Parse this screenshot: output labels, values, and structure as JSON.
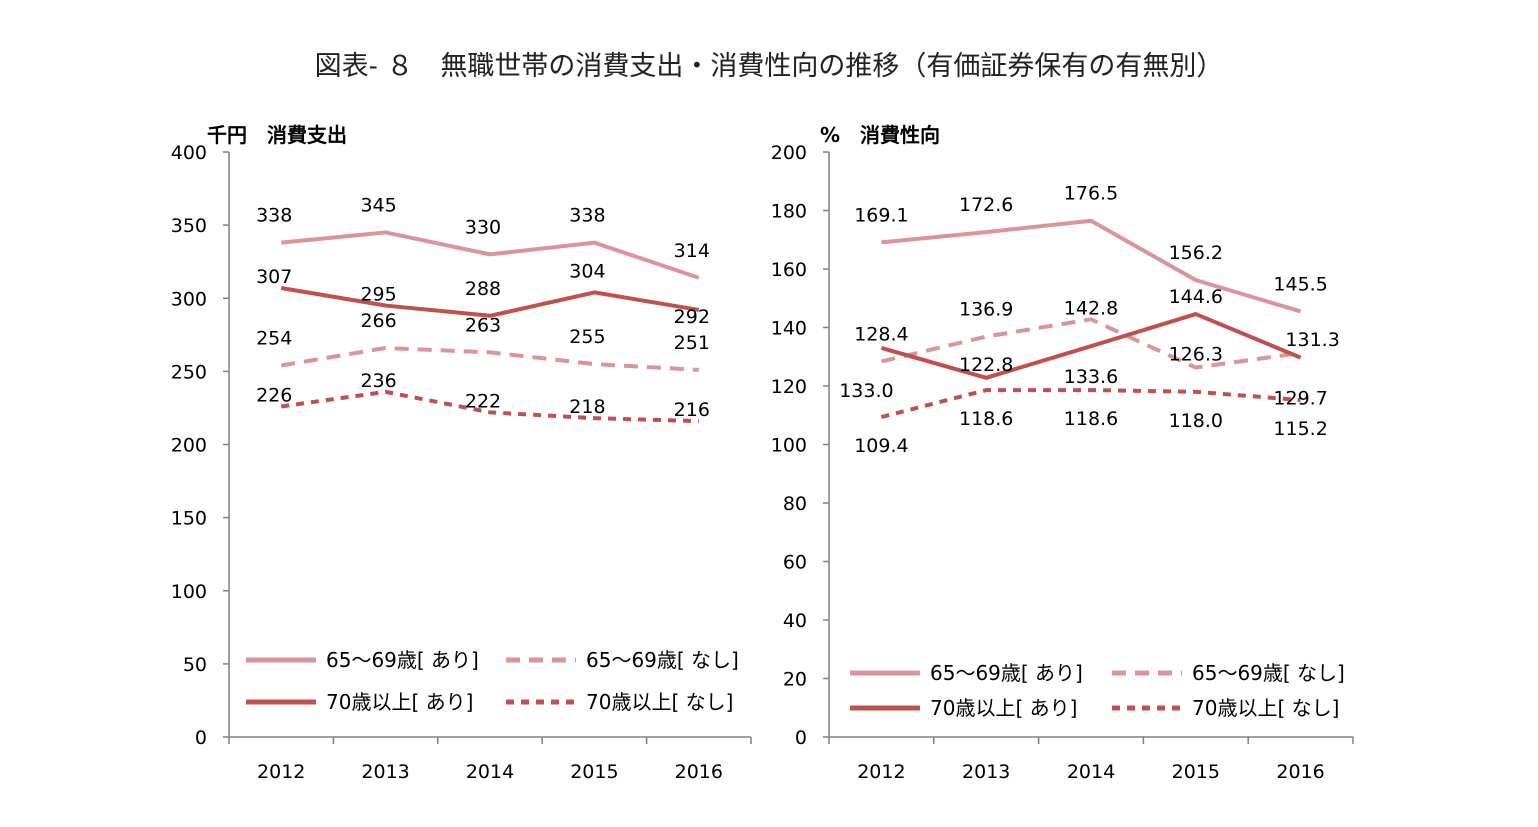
{
  "title": "図表- ８　無職世帯の消費支出・消費性向の推移（有価証券保有の有無別）",
  "colors": {
    "light": "#d99597",
    "dark": "#c0504d",
    "axis": "#808080"
  },
  "chart_data": [
    {
      "type": "line",
      "unit_label": "千円　消費支出",
      "categories": [
        "2012",
        "2013",
        "2014",
        "2015",
        "2016"
      ],
      "ylim": [
        0,
        400
      ],
      "yticks": [
        "0",
        "50",
        "100",
        "150",
        "200",
        "250",
        "300",
        "350",
        "400"
      ],
      "legend": "bottom",
      "series": [
        {
          "name": "65～69歳[ あり]",
          "values": [
            338,
            345,
            330,
            338,
            314
          ],
          "labels": [
            "338",
            "345",
            "330",
            "338",
            "314"
          ]
        },
        {
          "name": "65～69歳[ なし]",
          "values": [
            254,
            266,
            263,
            255,
            251
          ],
          "labels": [
            "254",
            "266",
            "263",
            "255",
            "251"
          ]
        },
        {
          "name": "70歳以上[ あり]",
          "values": [
            307,
            295,
            288,
            304,
            292
          ],
          "labels": [
            "307",
            "295",
            "288",
            "304",
            "292"
          ]
        },
        {
          "name": "70歳以上[ なし]",
          "values": [
            226,
            236,
            222,
            218,
            216
          ],
          "labels": [
            "226",
            "236",
            "222",
            "218",
            "216"
          ]
        }
      ]
    },
    {
      "type": "line",
      "unit_label": "%　消費性向",
      "categories": [
        "2012",
        "2013",
        "2014",
        "2015",
        "2016"
      ],
      "ylim": [
        0,
        200
      ],
      "yticks": [
        "0",
        "20",
        "40",
        "60",
        "80",
        "100",
        "120",
        "140",
        "160",
        "180",
        "200"
      ],
      "legend": "bottom",
      "series": [
        {
          "name": "65～69歳[ あり]",
          "values": [
            169.1,
            172.6,
            176.5,
            156.2,
            145.5
          ],
          "labels": [
            "169.1",
            "172.6",
            "176.5",
            "156.2",
            "145.5"
          ]
        },
        {
          "name": "65～69歳[ なし]",
          "values": [
            128.4,
            136.9,
            142.8,
            126.3,
            131.3
          ],
          "labels": [
            "128.4",
            "136.9",
            "142.8",
            "126.3",
            "131.3"
          ]
        },
        {
          "name": "70歳以上[ あり]",
          "values": [
            133.0,
            122.8,
            133.6,
            144.6,
            129.7
          ],
          "labels": [
            "133.0",
            "122.8",
            "133.6",
            "144.6",
            "129.7"
          ]
        },
        {
          "name": "70歳以上[ なし]",
          "values": [
            109.4,
            118.6,
            118.6,
            118.0,
            115.2
          ],
          "labels": [
            "109.4",
            "118.6",
            "118.6",
            "118.0",
            "115.2"
          ]
        }
      ]
    }
  ]
}
